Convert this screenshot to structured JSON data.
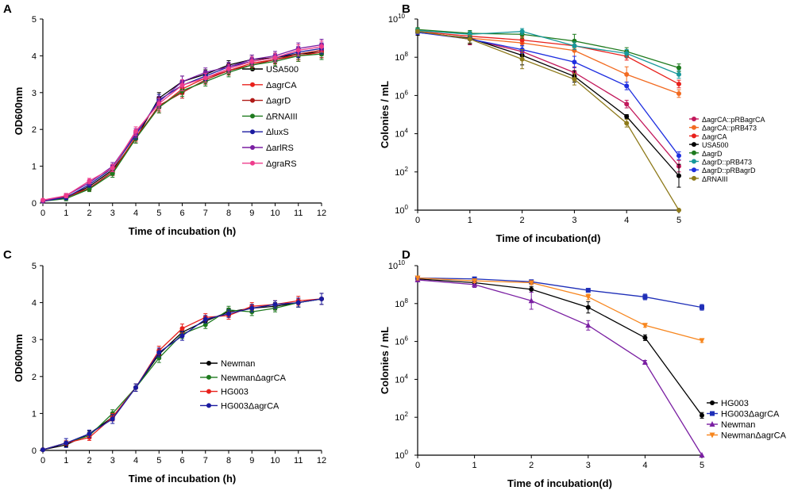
{
  "chart_data": [
    {
      "panel": "A",
      "type": "line",
      "xlabel": "Time of incubation (h)",
      "ylabel": "OD600nm",
      "x": [
        0,
        1,
        2,
        3,
        4,
        5,
        6,
        7,
        8,
        9,
        10,
        11,
        12
      ],
      "xlim": [
        0,
        12
      ],
      "ylim": [
        0,
        5
      ],
      "yscale": "linear",
      "xticks": [
        "0",
        "1",
        "2",
        "3",
        "4",
        "5",
        "6",
        "7",
        "8",
        "9",
        "10",
        "11",
        "12"
      ],
      "yticks": [
        "0",
        "1",
        "2",
        "3",
        "4",
        "5"
      ],
      "legend_position": "center-right",
      "series": [
        {
          "name": "USA500",
          "color": "#000000",
          "marker": "circle",
          "values": [
            0.05,
            0.15,
            0.45,
            0.9,
            1.75,
            2.85,
            3.3,
            3.5,
            3.75,
            3.9,
            3.95,
            4.05,
            4.1
          ],
          "err": [
            0.03,
            0.06,
            0.07,
            0.1,
            0.12,
            0.15,
            0.15,
            0.12,
            0.12,
            0.12,
            0.12,
            0.15,
            0.15
          ]
        },
        {
          "name": "ΔagrCA",
          "color": "#e8211c",
          "marker": "circle",
          "values": [
            0.05,
            0.18,
            0.4,
            0.85,
            1.8,
            2.6,
            3.1,
            3.4,
            3.6,
            3.8,
            3.9,
            4.0,
            4.1
          ],
          "err": [
            0.03,
            0.06,
            0.07,
            0.1,
            0.12,
            0.15,
            0.15,
            0.12,
            0.12,
            0.12,
            0.12,
            0.15,
            0.15
          ]
        },
        {
          "name": "ΔagrD",
          "color": "#b01a17",
          "marker": "circle",
          "values": [
            0.05,
            0.15,
            0.4,
            0.85,
            1.75,
            2.65,
            3.0,
            3.35,
            3.6,
            3.75,
            3.9,
            4.05,
            4.15
          ],
          "err": [
            0.03,
            0.06,
            0.07,
            0.1,
            0.12,
            0.15,
            0.15,
            0.12,
            0.12,
            0.12,
            0.12,
            0.15,
            0.15
          ]
        },
        {
          "name": "ΔRNAIII",
          "color": "#1e7a1e",
          "marker": "circle",
          "values": [
            0.05,
            0.12,
            0.38,
            0.8,
            1.75,
            2.6,
            3.05,
            3.3,
            3.55,
            3.75,
            3.85,
            4.0,
            4.05
          ],
          "err": [
            0.03,
            0.06,
            0.07,
            0.1,
            0.12,
            0.15,
            0.15,
            0.12,
            0.12,
            0.12,
            0.12,
            0.15,
            0.15
          ]
        },
        {
          "name": "ΔluxS",
          "color": "#1a1aa0",
          "marker": "circle",
          "values": [
            0.05,
            0.15,
            0.5,
            0.95,
            1.85,
            2.8,
            3.2,
            3.45,
            3.7,
            3.85,
            3.95,
            4.1,
            4.2
          ],
          "err": [
            0.03,
            0.06,
            0.07,
            0.1,
            0.12,
            0.15,
            0.15,
            0.12,
            0.12,
            0.12,
            0.12,
            0.15,
            0.15
          ]
        },
        {
          "name": "ΔarlRS",
          "color": "#7a1fa2",
          "marker": "circle",
          "values": [
            0.05,
            0.2,
            0.55,
            1.0,
            1.9,
            2.75,
            3.3,
            3.55,
            3.7,
            3.9,
            4.0,
            4.2,
            4.3
          ],
          "err": [
            0.03,
            0.06,
            0.07,
            0.1,
            0.12,
            0.15,
            0.15,
            0.12,
            0.12,
            0.12,
            0.12,
            0.15,
            0.15
          ]
        },
        {
          "name": "ΔgraRS",
          "color": "#ee3c8c",
          "marker": "circle",
          "values": [
            0.08,
            0.2,
            0.6,
            0.95,
            1.95,
            2.7,
            3.2,
            3.4,
            3.65,
            3.85,
            3.95,
            4.15,
            4.25
          ],
          "err": [
            0.03,
            0.06,
            0.07,
            0.1,
            0.12,
            0.15,
            0.15,
            0.12,
            0.12,
            0.12,
            0.12,
            0.15,
            0.15
          ]
        }
      ]
    },
    {
      "panel": "B",
      "type": "line",
      "xlabel": "Time of incubation(d)",
      "ylabel": "Colonies / mL",
      "x": [
        0,
        1,
        2,
        3,
        4,
        5
      ],
      "xlim": [
        0,
        5
      ],
      "ylim_log10": [
        0,
        10
      ],
      "yscale": "log",
      "xticks": [
        "0",
        "1",
        "2",
        "3",
        "4",
        "5"
      ],
      "yticks": [
        "10",
        "10",
        "10",
        "10",
        "10",
        "10"
      ],
      "ytick_exponents": [
        "0",
        "2",
        "4",
        "6",
        "8",
        "10"
      ],
      "legend_position": "right",
      "series": [
        {
          "name": "ΔagrCA::pRBagrCA",
          "color": "#c2185b",
          "marker": "circle",
          "log_values": [
            9.35,
            8.95,
            8.3,
            7.2,
            5.55,
            2.3
          ],
          "log_err": [
            0.15,
            0.3,
            0.4,
            0.3,
            0.2,
            0.3
          ]
        },
        {
          "name": "ΔagrCA::pRB473",
          "color": "#f26b21",
          "marker": "circle",
          "log_values": [
            9.3,
            9.0,
            8.75,
            8.35,
            7.1,
            6.1
          ],
          "log_err": [
            0.15,
            0.3,
            0.3,
            0.3,
            0.4,
            0.2
          ]
        },
        {
          "name": "ΔagrCA",
          "color": "#e8211c",
          "marker": "circle",
          "log_values": [
            9.35,
            9.1,
            8.9,
            8.6,
            8.05,
            6.6
          ],
          "log_err": [
            0.1,
            0.2,
            0.2,
            0.2,
            0.2,
            0.2
          ]
        },
        {
          "name": "USA500",
          "color": "#000000",
          "marker": "circle",
          "log_values": [
            9.3,
            9.0,
            8.1,
            7.0,
            4.9,
            1.8
          ],
          "log_err": [
            0.15,
            0.3,
            0.5,
            0.3,
            0.1,
            0.6
          ]
        },
        {
          "name": "ΔagrD",
          "color": "#1e7a1e",
          "marker": "circle",
          "log_values": [
            9.45,
            9.25,
            9.2,
            8.85,
            8.3,
            7.45
          ],
          "log_err": [
            0.1,
            0.15,
            0.2,
            0.35,
            0.2,
            0.2
          ]
        },
        {
          "name": "ΔagrD::pRB473",
          "color": "#17989b",
          "marker": "circle",
          "log_values": [
            9.4,
            9.2,
            9.35,
            8.6,
            8.2,
            7.1
          ],
          "log_err": [
            0.1,
            0.15,
            0.15,
            0.2,
            0.2,
            0.2
          ]
        },
        {
          "name": "ΔagrD::pRBagrD",
          "color": "#1f2fe0",
          "marker": "circle",
          "log_values": [
            9.3,
            8.95,
            8.4,
            7.75,
            6.5,
            2.85
          ],
          "log_err": [
            0.1,
            0.2,
            0.2,
            0.3,
            0.2,
            0.2
          ]
        },
        {
          "name": "ΔRNAIII",
          "color": "#8e7a1a",
          "marker": "circle",
          "log_values": [
            9.35,
            8.95,
            7.9,
            6.85,
            4.55,
            0.0
          ],
          "log_err": [
            0.1,
            0.2,
            0.5,
            0.3,
            0.2,
            0.0
          ]
        }
      ]
    },
    {
      "panel": "C",
      "type": "line",
      "xlabel": "Time of incubation (h)",
      "ylabel": "OD600nm",
      "x": [
        0,
        1,
        2,
        3,
        4,
        5,
        6,
        7,
        8,
        9,
        10,
        11,
        12
      ],
      "xlim": [
        0,
        12
      ],
      "ylim": [
        0,
        5
      ],
      "yscale": "linear",
      "xticks": [
        "0",
        "1",
        "2",
        "3",
        "4",
        "5",
        "6",
        "7",
        "8",
        "9",
        "10",
        "11",
        "12"
      ],
      "yticks": [
        "0",
        "1",
        "2",
        "3",
        "4",
        "5"
      ],
      "legend_position": "center-right",
      "series": [
        {
          "name": "Newman",
          "color": "#000000",
          "marker": "circle",
          "values": [
            0.02,
            0.15,
            0.45,
            0.9,
            1.7,
            2.6,
            3.2,
            3.5,
            3.75,
            3.85,
            3.9,
            4.0,
            4.1
          ],
          "err": [
            0.02,
            0.06,
            0.08,
            0.1,
            0.1,
            0.12,
            0.12,
            0.1,
            0.1,
            0.1,
            0.1,
            0.12,
            0.15
          ]
        },
        {
          "name": "NewmanΔagrCA",
          "color": "#1e7a1e",
          "marker": "circle",
          "values": [
            0.02,
            0.2,
            0.4,
            1.0,
            1.7,
            2.5,
            3.15,
            3.4,
            3.8,
            3.75,
            3.85,
            4.0,
            4.1
          ],
          "err": [
            0.02,
            0.06,
            0.08,
            0.1,
            0.1,
            0.12,
            0.12,
            0.1,
            0.1,
            0.1,
            0.1,
            0.12,
            0.15
          ]
        },
        {
          "name": "HG003",
          "color": "#e8211c",
          "marker": "circle",
          "values": [
            0.02,
            0.2,
            0.35,
            0.9,
            1.7,
            2.7,
            3.3,
            3.6,
            3.65,
            3.9,
            3.95,
            4.05,
            4.1
          ],
          "err": [
            0.02,
            0.06,
            0.08,
            0.1,
            0.1,
            0.12,
            0.12,
            0.1,
            0.1,
            0.1,
            0.1,
            0.12,
            0.15
          ]
        },
        {
          "name": "HG003ΔagrCA",
          "color": "#1a1aa0",
          "marker": "circle",
          "values": [
            0.02,
            0.2,
            0.45,
            0.85,
            1.7,
            2.65,
            3.1,
            3.55,
            3.7,
            3.85,
            3.95,
            4.0,
            4.1
          ],
          "err": [
            0.02,
            0.12,
            0.1,
            0.12,
            0.1,
            0.12,
            0.12,
            0.1,
            0.1,
            0.1,
            0.1,
            0.12,
            0.15
          ]
        }
      ]
    },
    {
      "panel": "D",
      "type": "line",
      "xlabel": "Time of incubation(d)",
      "ylabel": "Colonies / mL",
      "x": [
        0,
        1,
        2,
        3,
        4,
        5
      ],
      "xlim": [
        0,
        5
      ],
      "ylim_log10": [
        0,
        10
      ],
      "yscale": "log",
      "xticks": [
        "0",
        "1",
        "2",
        "3",
        "4",
        "5"
      ],
      "yticks": [
        "10",
        "10",
        "10",
        "10",
        "10",
        "10"
      ],
      "ytick_exponents": [
        "0",
        "2",
        "4",
        "6",
        "8",
        "10"
      ],
      "legend_position": "bottom-right",
      "series": [
        {
          "name": "HG003",
          "color": "#000000",
          "marker": "circle",
          "log_values": [
            9.3,
            9.1,
            8.75,
            7.8,
            6.2,
            2.1
          ],
          "log_err": [
            0.1,
            0.1,
            0.15,
            0.3,
            0.15,
            0.15
          ]
        },
        {
          "name": "HG003ΔagrCA",
          "color": "#1f2fb8",
          "marker": "square",
          "log_values": [
            9.35,
            9.3,
            9.15,
            8.7,
            8.35,
            7.8
          ],
          "log_err": [
            0.1,
            0.1,
            0.1,
            0.1,
            0.15,
            0.15
          ]
        },
        {
          "name": "Newman",
          "color": "#7a1fa2",
          "marker": "triangle",
          "log_values": [
            9.25,
            9.0,
            8.15,
            6.85,
            4.9,
            0.0
          ],
          "log_err": [
            0.1,
            0.15,
            0.45,
            0.25,
            0.1,
            0.0
          ]
        },
        {
          "name": "NewmanΔagrCA",
          "color": "#f7861e",
          "marker": "triangle-down",
          "log_values": [
            9.35,
            9.2,
            9.1,
            8.35,
            6.85,
            6.05
          ],
          "log_err": [
            0.1,
            0.1,
            0.1,
            0.15,
            0.1,
            0.1
          ]
        }
      ]
    }
  ],
  "panels": {
    "A": {
      "label": "A"
    },
    "B": {
      "label": "B"
    },
    "C": {
      "label": "C"
    },
    "D": {
      "label": "D"
    }
  }
}
